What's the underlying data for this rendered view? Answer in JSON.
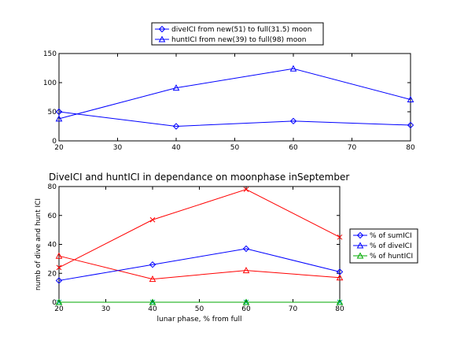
{
  "chart_data": [
    {
      "type": "line",
      "title": "",
      "xlabel": "",
      "ylabel": "",
      "x": [
        20,
        40,
        60,
        80
      ],
      "xlim": [
        20,
        80
      ],
      "ylim": [
        0,
        150
      ],
      "xticks": [
        "20",
        "30",
        "40",
        "50",
        "60",
        "70",
        "80"
      ],
      "yticks": [
        "0",
        "50",
        "100",
        "150"
      ],
      "legend_position": "top",
      "series": [
        {
          "name": "diveICI from new(51) to full(31.5) moon",
          "color": "#0000ff",
          "marker": "diamond",
          "values": [
            50,
            25,
            34,
            27
          ]
        },
        {
          "name": "huntICI from new(39) to full(98) moon",
          "color": "#0000ff",
          "marker": "triangle",
          "values": [
            38,
            91,
            124,
            71
          ]
        }
      ]
    },
    {
      "type": "line",
      "title": "DiveICI and huntICI in dependance on moonphase inSeptember",
      "xlabel": "lunar phase, % from full",
      "ylabel": "numb of dive and hunt ICI",
      "x": [
        20,
        40,
        60,
        80
      ],
      "xlim": [
        20,
        80
      ],
      "ylim": [
        0,
        80
      ],
      "xticks": [
        "20",
        "30",
        "40",
        "50",
        "60",
        "70",
        "80"
      ],
      "yticks": [
        "0",
        "20",
        "40",
        "60",
        "80"
      ],
      "legend_position": "right",
      "series": [
        {
          "name": "% of sumICI",
          "color": "#0000ff",
          "marker": "diamond",
          "values": [
            15,
            26,
            37,
            21
          ]
        },
        {
          "name": "% of diveICI",
          "color": "#0000ff",
          "marker": "triangle",
          "values": [
            null,
            null,
            null,
            null
          ]
        },
        {
          "name": "% of huntICI",
          "color": "#00aa00",
          "marker": "triangle",
          "values": [
            0,
            0,
            0,
            0
          ]
        }
      ],
      "extra_series": [
        {
          "color": "#ff0000",
          "marker": "x",
          "values": [
            24,
            57,
            78,
            45
          ]
        },
        {
          "color": "#ff0000",
          "marker": "triangle",
          "values": [
            32,
            16,
            22,
            17
          ]
        },
        {
          "color": "#00aaaa",
          "marker": "x",
          "values": [
            0,
            0,
            0,
            0
          ]
        }
      ]
    }
  ]
}
